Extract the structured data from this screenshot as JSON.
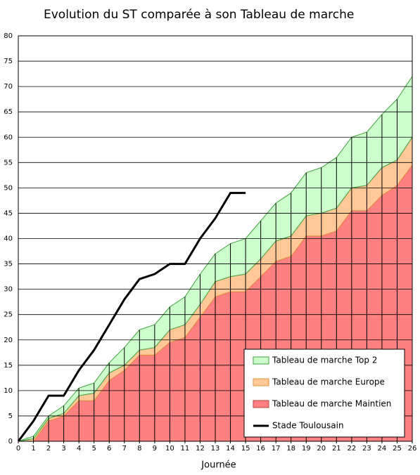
{
  "chart_data": {
    "type": "stacked_area_line",
    "title": "Evolution du ST comparée à son Tableau de marche",
    "xlabel": "Journée",
    "x": [
      0,
      1,
      2,
      3,
      4,
      5,
      6,
      7,
      8,
      9,
      10,
      11,
      12,
      13,
      14,
      15,
      16,
      17,
      18,
      19,
      20,
      21,
      22,
      23,
      24,
      25,
      26
    ],
    "xlim": [
      0,
      26
    ],
    "xticks": [
      0,
      1,
      2,
      3,
      4,
      5,
      6,
      7,
      8,
      9,
      10,
      11,
      12,
      13,
      14,
      15,
      16,
      17,
      18,
      19,
      20,
      21,
      22,
      23,
      24,
      25,
      26
    ],
    "ylim": [
      0,
      80
    ],
    "yticks": [
      0,
      5,
      10,
      15,
      20,
      25,
      30,
      35,
      40,
      45,
      50,
      55,
      60,
      65,
      70,
      75,
      80
    ],
    "grid": true,
    "legend": "lower right",
    "series": [
      {
        "name": "Tableau de marche Maintien",
        "color": "#ff8080",
        "kind": "area",
        "values": [
          0,
          0,
          4,
          5,
          8,
          8,
          12,
          14,
          17,
          17,
          19.5,
          20.5,
          24.5,
          28.5,
          29.5,
          29.5,
          32.5,
          35.5,
          36.5,
          40.5,
          40.5,
          41.5,
          45.5,
          45.5,
          48.5,
          50.5,
          54.5
        ]
      },
      {
        "name": "Tableau de marche Europe",
        "color": "#ffc896",
        "kind": "area",
        "values": [
          0,
          0.5,
          0.5,
          0.5,
          1,
          1.5,
          1.5,
          1,
          1,
          1.5,
          2.5,
          2.5,
          2.5,
          3,
          3,
          3.5,
          3.5,
          4,
          4,
          4,
          4.5,
          4.5,
          4.5,
          5,
          5.5,
          5,
          5.5
        ]
      },
      {
        "name": "Tableau de marche Top 2",
        "color": "#ccffcc",
        "kind": "area",
        "values": [
          0,
          0.5,
          0.5,
          1.5,
          1.5,
          2,
          2,
          3.5,
          4,
          4.5,
          4.5,
          5.5,
          6,
          5.5,
          6.5,
          7,
          7.5,
          7.5,
          8.5,
          8.5,
          9,
          10,
          10,
          10.5,
          10.5,
          12,
          12
        ]
      },
      {
        "name": "Stade Toulousain",
        "color": "#000000",
        "kind": "line",
        "values": [
          0,
          4,
          9,
          9,
          14,
          18,
          23,
          28,
          32,
          33,
          35,
          35,
          40,
          44,
          49,
          49,
          null,
          null,
          null,
          null,
          null,
          null,
          null,
          null,
          null,
          null,
          null
        ]
      }
    ]
  }
}
